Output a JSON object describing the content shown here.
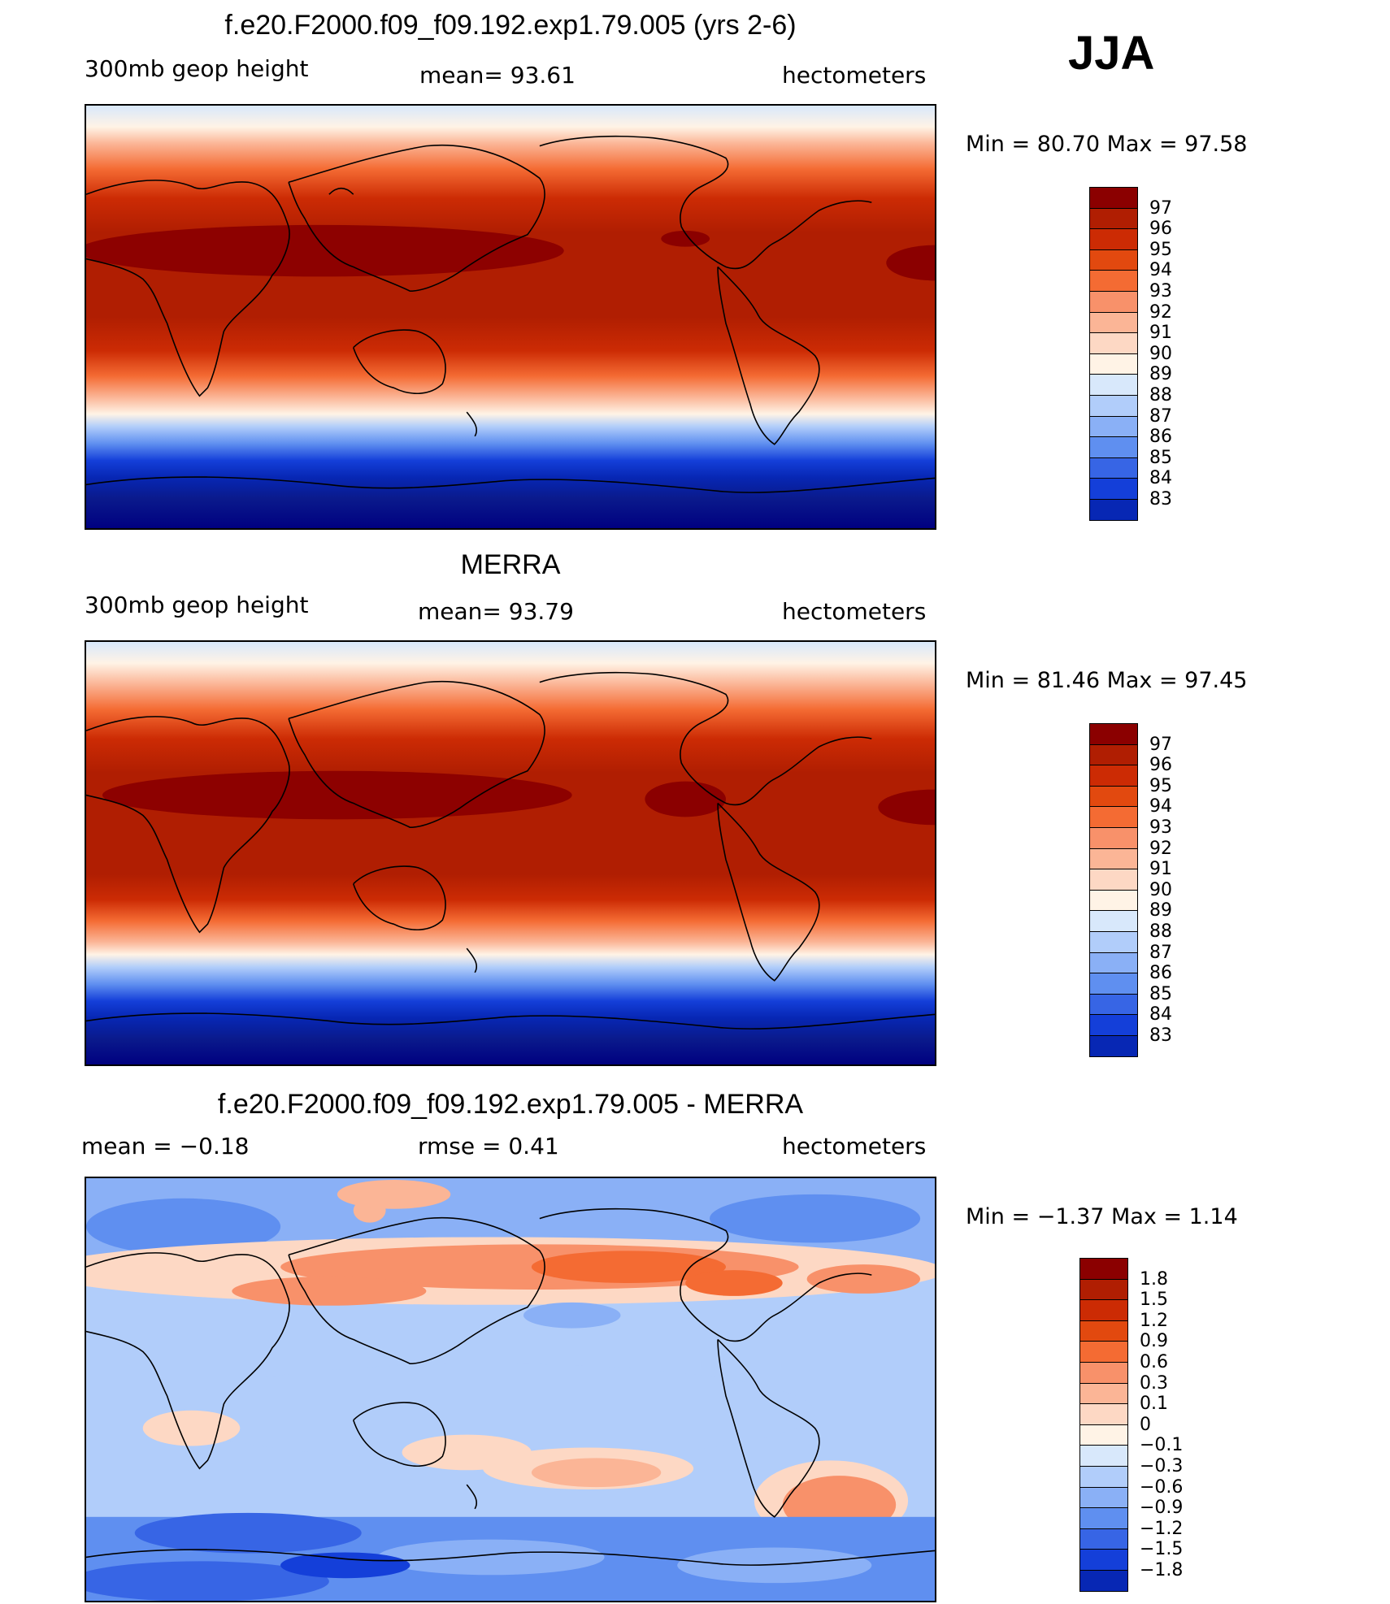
{
  "season": "JJA",
  "panels": [
    {
      "id": "model",
      "title": "f.e20.F2000.f09_f09.192.exp1.79.005 (yrs 2-6)",
      "left_label": "300mb  geop  height",
      "mid_label": "mean=   93.61",
      "right_label": "hectometers",
      "minmax": "Min  =    80.70  Max  =    97.58",
      "colorbar": {
        "labels": [
          "97",
          "96",
          "95",
          "94",
          "93",
          "92",
          "91",
          "90",
          "89",
          "88",
          "87",
          "86",
          "85",
          "84",
          "83"
        ],
        "colors": [
          "#8b0000",
          "#b01e02",
          "#cc2b04",
          "#e2490f",
          "#f46b33",
          "#f8916a",
          "#fbb596",
          "#fdd8c4",
          "#fff3e6",
          "#d8e8fb",
          "#b1cdfa",
          "#8ab0f6",
          "#5f8ff0",
          "#3765e5",
          "#143fd9",
          "#0727b4"
        ]
      },
      "map_field": "height_model"
    },
    {
      "id": "obs",
      "title": "MERRA",
      "left_label": "300mb  geop  height",
      "mid_label": "mean=   93.79",
      "right_label": "hectometers",
      "minmax": "Min  =    81.46  Max  =    97.45",
      "colorbar": {
        "labels": [
          "97",
          "96",
          "95",
          "94",
          "93",
          "92",
          "91",
          "90",
          "89",
          "88",
          "87",
          "86",
          "85",
          "84",
          "83"
        ],
        "colors": [
          "#8b0000",
          "#b01e02",
          "#cc2b04",
          "#e2490f",
          "#f46b33",
          "#f8916a",
          "#fbb596",
          "#fdd8c4",
          "#fff3e6",
          "#d8e8fb",
          "#b1cdfa",
          "#8ab0f6",
          "#5f8ff0",
          "#3765e5",
          "#143fd9",
          "#0727b4"
        ]
      },
      "map_field": "height_obs"
    },
    {
      "id": "diff",
      "title": "f.e20.F2000.f09_f09.192.exp1.79.005 - MERRA",
      "left_label": "mean  =    −0.18",
      "mid_label": "rmse  =     0.41",
      "right_label": "hectometers",
      "minmax": "Min  =    −1.37  Max  =      1.14",
      "colorbar": {
        "labels": [
          "1.8",
          "1.5",
          "1.2",
          "0.9",
          "0.6",
          "0.3",
          "0.1",
          "0",
          "−0.1",
          "−0.3",
          "−0.6",
          "−0.9",
          "−1.2",
          "−1.5",
          "−1.8"
        ],
        "colors": [
          "#8b0000",
          "#b01e02",
          "#cc2b04",
          "#e2490f",
          "#f46b33",
          "#f8916a",
          "#fbb596",
          "#fdd8c4",
          "#fff3e6",
          "#d8e8fb",
          "#b1cdfa",
          "#8ab0f6",
          "#5f8ff0",
          "#3765e5",
          "#143fd9",
          "#0727b4"
        ]
      },
      "map_field": "diff"
    }
  ]
}
